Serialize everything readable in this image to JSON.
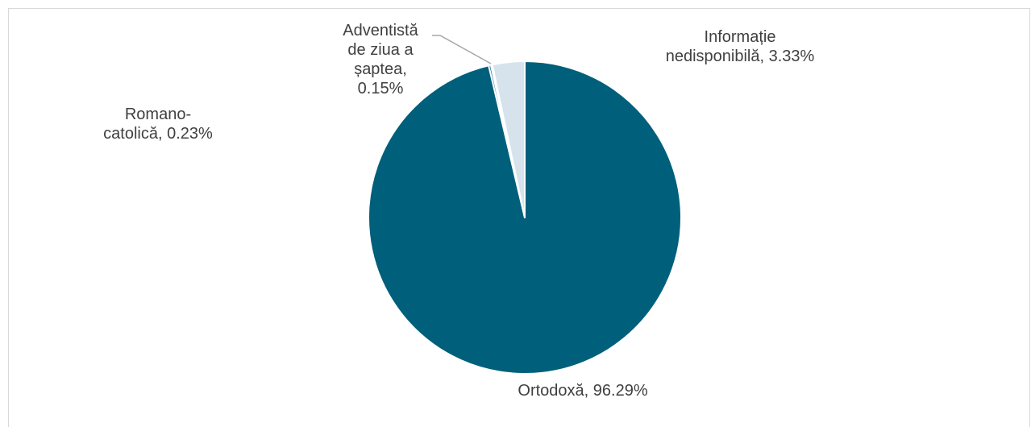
{
  "chart_data": {
    "type": "pie",
    "title": "",
    "start_angle_deg": 0,
    "direction": "clockwise",
    "slices": [
      {
        "label_lines": [
          "Ortodoxă, 96.29%"
        ],
        "category": "Ortodoxă",
        "value": 96.29,
        "color": "#005f7a"
      },
      {
        "label_lines": [
          "Romano-",
          "catolică, 0.23%"
        ],
        "category": "Romano-catolică",
        "value": 0.23,
        "color": "#005f7a"
      },
      {
        "label_lines": [
          "Adventistă",
          "de ziua a",
          "șaptea,",
          "0.15%"
        ],
        "category": "Adventistă de ziua a șaptea",
        "value": 0.15,
        "color": "#7f7f7f"
      },
      {
        "label_lines": [
          "Informație",
          "nedisponibilă, 3.33%"
        ],
        "category": "Informație nedisponibilă",
        "value": 3.33,
        "color": "#d6e3ec"
      }
    ],
    "colors": {
      "border": "#d9d9d9",
      "slice_separator": "#ffffff",
      "label_text": "#404040",
      "leader_line": "#a6a6a6"
    }
  }
}
